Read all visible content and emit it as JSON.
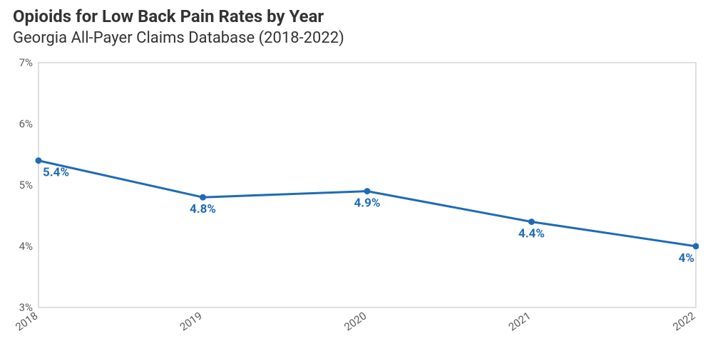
{
  "header": {
    "title": "Opioids for Low Back Pain Rates by Year",
    "subtitle": "Georgia All-Payer Claims Database (2018-2022)"
  },
  "chart": {
    "type": "line",
    "background_color": "#ffffff",
    "series_color": "#1f6bb7",
    "line_width": 3,
    "marker_radius": 4.5,
    "marker_fill": "#1f6bb7",
    "border_color": "#bfbfbf",
    "border_width": 1,
    "axis_text_color": "#5a5a5a",
    "axis_font_size": 15,
    "data_label_color": "#1f6bb7",
    "data_label_font_size": 17,
    "data_label_font_weight": 700,
    "x": {
      "categories": [
        "2018",
        "2019",
        "2020",
        "2021",
        "2022"
      ],
      "tick_rotation_deg": -35
    },
    "y": {
      "min": 3,
      "max": 7,
      "tick_step": 1,
      "tick_labels": [
        "3%",
        "4%",
        "5%",
        "6%",
        "7%"
      ],
      "baseline_color": "#bfbfbf"
    },
    "data": {
      "values": [
        5.4,
        4.8,
        4.9,
        4.4,
        4.0
      ],
      "labels": [
        "5.4%",
        "4.8%",
        "4.9%",
        "4.4%",
        "4%"
      ]
    }
  }
}
